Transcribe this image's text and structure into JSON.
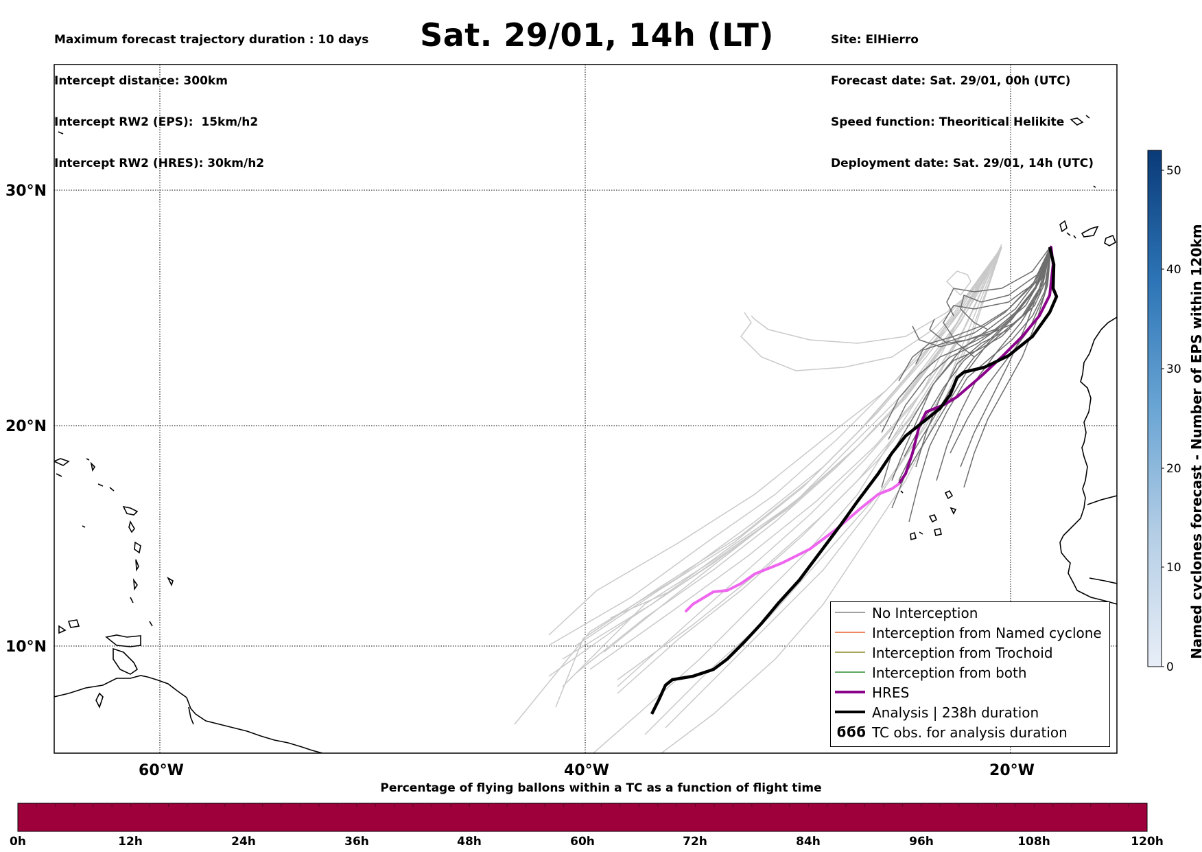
{
  "header": {
    "left_lines": [
      "Maximum forecast trajectory duration : 10 days",
      "Intercept distance: 300km",
      "Intercept RW2 (EPS):  15km/h2",
      "Intercept RW2 (HRES): 30km/h2"
    ],
    "title": "Sat. 29/01, 14h (LT)",
    "right_lines": [
      "Site: ElHierro",
      "Forecast date: Sat. 29/01, 00h (UTC)",
      "Speed function: Theoritical Helikite",
      "Deployment date: Sat. 29/01, 14h (UTC)"
    ]
  },
  "map": {
    "lon_range": [
      -65,
      -15
    ],
    "lat_range": [
      5.4,
      34.7
    ],
    "lat_labels": [
      "30°N",
      "20°N",
      "10°N"
    ],
    "lon_labels": [
      "60°W",
      "40°W",
      "20°W"
    ],
    "gridlines": "dotted"
  },
  "legend": {
    "items": [
      {
        "label": "No Interception",
        "color": "#808080"
      },
      {
        "label": "Interception from Named cyclone",
        "color": "#e8622a"
      },
      {
        "label": "Interception from Trochoid",
        "color": "#8a8a2a"
      },
      {
        "label": "Interception from both",
        "color": "#2a8a2a"
      },
      {
        "label": "HRES",
        "color": "#8b008b"
      },
      {
        "label": "Analysis | 238h duration",
        "color": "#000000"
      },
      {
        "label": "TC obs. for analysis duration",
        "symbol": "ϭϭϭ"
      }
    ]
  },
  "colorbar_vertical": {
    "label": "Named cyclones forecast - Number of EPS within 120km",
    "ticks": [
      "0",
      "10",
      "20",
      "30",
      "40",
      "50"
    ],
    "range": [
      0,
      52
    ]
  },
  "colorbar_horizontal": {
    "title": "Percentage of flying ballons within a TC as a function of flight time",
    "ticks": [
      "0h",
      "12h",
      "24h",
      "36h",
      "48h",
      "60h",
      "72h",
      "84h",
      "96h",
      "108h",
      "120h"
    ],
    "color": "#9e003c"
  }
}
